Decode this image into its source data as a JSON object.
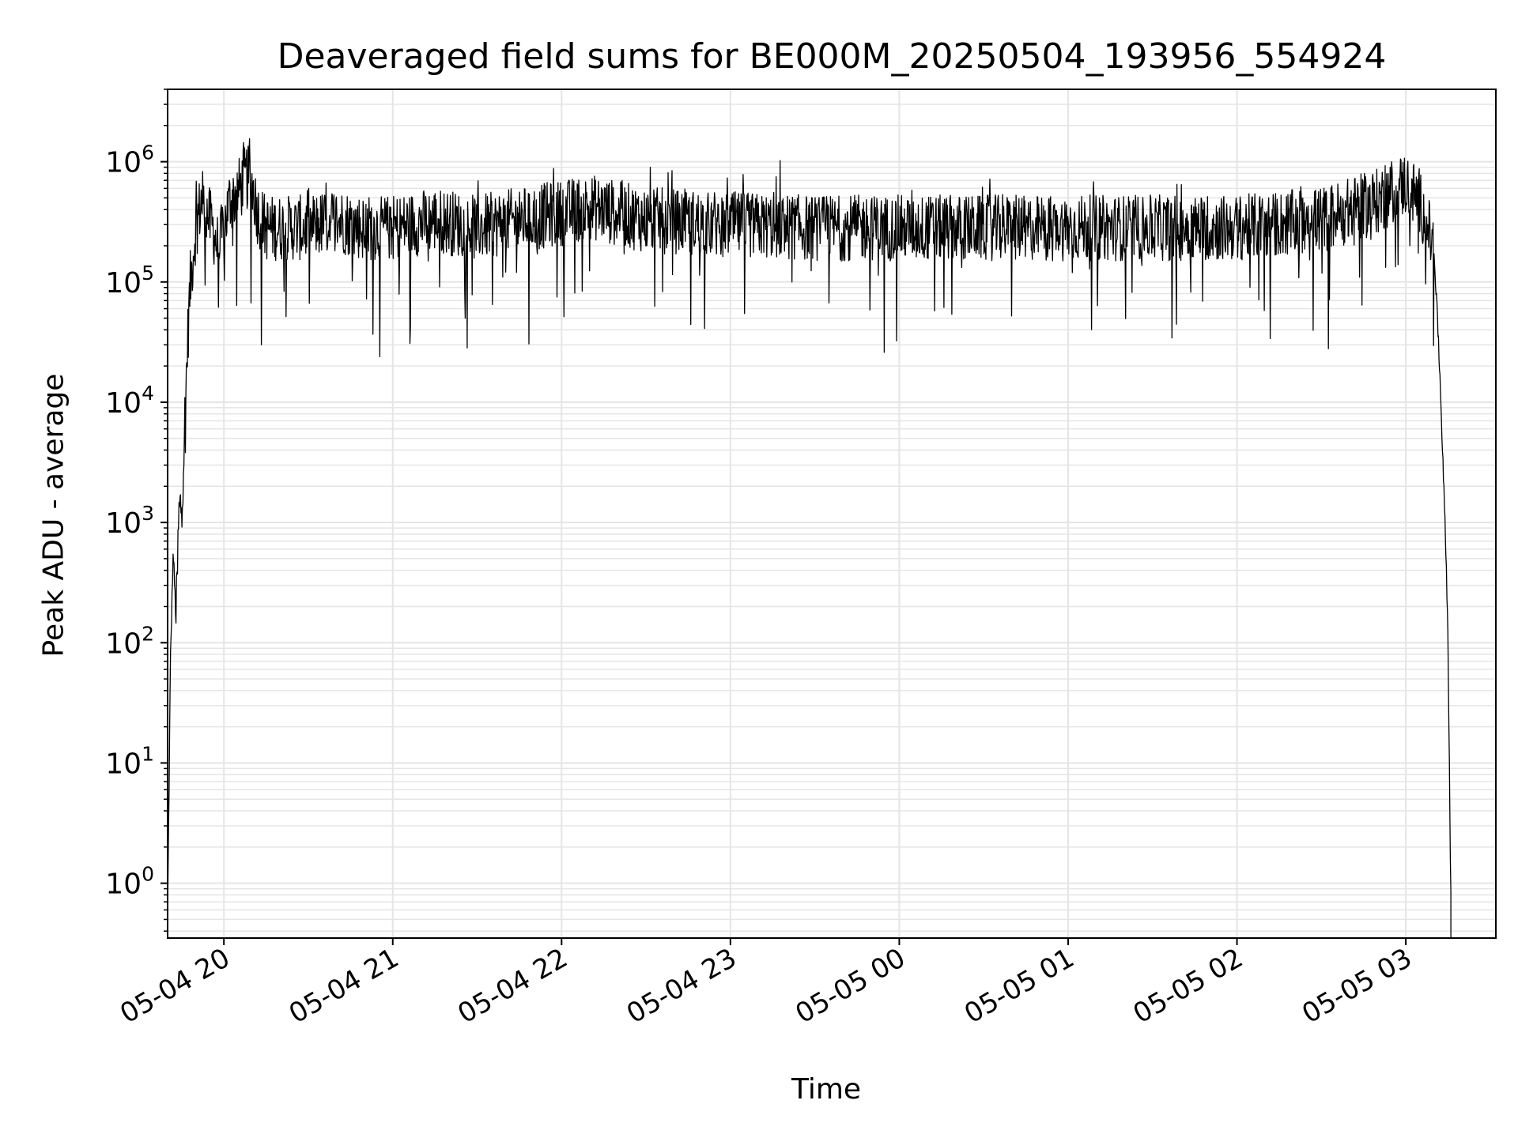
{
  "chart_data": {
    "type": "line",
    "title": "Deaveraged field sums for BE000M_20250504_193956_554924",
    "xlabel": "Time",
    "ylabel": "Peak ADU - average",
    "yscale": "log",
    "ylim": [
      0.35,
      4000000
    ],
    "xlim": [
      "2025-05-04 19:40",
      "2025-05-05 03:32"
    ],
    "grid": "major and minor",
    "line_color": "#000000",
    "grid_color": "#e5e5e5",
    "x_ticks": [
      "05-04 20",
      "05-04 21",
      "05-04 22",
      "05-04 23",
      "05-05 00",
      "05-05 01",
      "05-05 02",
      "05-05 03"
    ],
    "y_ticks": [
      {
        "value": 1,
        "base": "10",
        "exp": "0"
      },
      {
        "value": 10,
        "base": "10",
        "exp": "1"
      },
      {
        "value": 100,
        "base": "10",
        "exp": "2"
      },
      {
        "value": 1000,
        "base": "10",
        "exp": "3"
      },
      {
        "value": 10000,
        "base": "10",
        "exp": "4"
      },
      {
        "value": 100000,
        "base": "10",
        "exp": "5"
      },
      {
        "value": 1000000,
        "base": "10",
        "exp": "6"
      }
    ],
    "series": [
      {
        "x": [
          "2025-05-04 19:40",
          "2025-05-04 19:41",
          "2025-05-04 19:42",
          "2025-05-04 19:43",
          "2025-05-04 19:44",
          "2025-05-04 19:45",
          "2025-05-04 19:46",
          "2025-05-04 19:47",
          "2025-05-04 19:48",
          "2025-05-04 19:50",
          "2025-05-04 19:52",
          "2025-05-04 19:54",
          "2025-05-04 19:56",
          "2025-05-04 19:58",
          "2025-05-04 20:00",
          "2025-05-04 20:02",
          "2025-05-04 20:05",
          "2025-05-04 20:08",
          "2025-05-04 20:10",
          "2025-05-04 20:12",
          "2025-05-04 20:15",
          "2025-05-04 20:20",
          "2025-05-04 20:30",
          "2025-05-04 20:40",
          "2025-05-04 20:50",
          "2025-05-04 21:00",
          "2025-05-04 21:15",
          "2025-05-04 21:30",
          "2025-05-04 21:45",
          "2025-05-04 22:00",
          "2025-05-04 22:10",
          "2025-05-04 22:30",
          "2025-05-04 23:00",
          "2025-05-04 23:30",
          "2025-05-05 00:00",
          "2025-05-05 00:30",
          "2025-05-05 01:00",
          "2025-05-05 01:30",
          "2025-05-05 02:00",
          "2025-05-05 02:30",
          "2025-05-05 02:50",
          "2025-05-05 03:00",
          "2025-05-05 03:05",
          "2025-05-05 03:10",
          "2025-05-05 03:12",
          "2025-05-05 03:14",
          "2025-05-05 03:15",
          "2025-05-05 03:16"
        ],
        "y": [
          0.5,
          70,
          600,
          150,
          1200,
          1600,
          6000,
          30000,
          100000,
          300000,
          500000,
          400000,
          300000,
          200000,
          300000,
          500000,
          600000,
          800000,
          700000,
          400000,
          300000,
          300000,
          300000,
          350000,
          300000,
          300000,
          350000,
          300000,
          350000,
          400000,
          450000,
          350000,
          320000,
          300000,
          300000,
          300000,
          300000,
          300000,
          300000,
          350000,
          500000,
          700000,
          500000,
          200000,
          20000,
          1000,
          100,
          0.8
        ]
      }
    ]
  }
}
